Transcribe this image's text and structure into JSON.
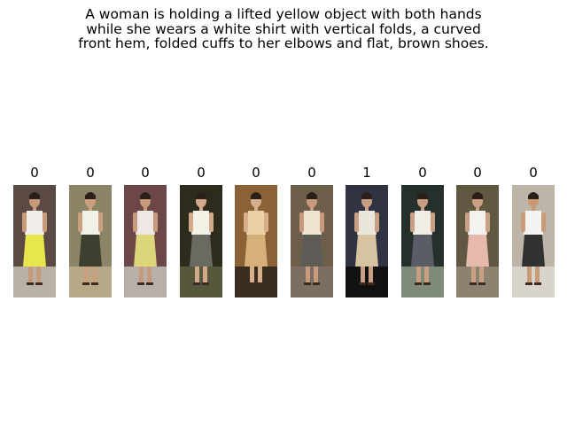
{
  "caption": {
    "lines": [
      "A woman is holding a lifted yellow object with both hands",
      "while she wears a white shirt with vertical folds, a curved",
      "front hem, folded cuffs to her elbows and flat, brown shoes."
    ]
  },
  "panels": [
    {
      "label": "0",
      "bg": "#5b4a44",
      "floor": "#b9b1a6",
      "top": "#f2eeea",
      "bottom": "#e7e64a",
      "skin": "#c79a7b"
    },
    {
      "label": "0",
      "bg": "#8b8467",
      "floor": "#b7a887",
      "top": "#f1f1ea",
      "bottom": "#3d3f2f",
      "skin": "#caa07f"
    },
    {
      "label": "0",
      "bg": "#6c4748",
      "floor": "#b7b0aa",
      "top": "#efe7e3",
      "bottom": "#dcd67a",
      "skin": "#c79a7b"
    },
    {
      "label": "0",
      "bg": "#2d2b1c",
      "floor": "#56573b",
      "top": "#f3f0e6",
      "bottom": "#6b6a62",
      "skin": "#d2a98a"
    },
    {
      "label": "0",
      "bg": "#8b6235",
      "floor": "#3b2c20",
      "top": "#ead2a4",
      "bottom": "#d6b07b",
      "skin": "#d6b08d"
    },
    {
      "label": "0",
      "bg": "#6d5e4a",
      "floor": "#7c6f61",
      "top": "#efe4d2",
      "bottom": "#5e5b56",
      "skin": "#c79a7b"
    },
    {
      "label": "1",
      "bg": "#2f3342",
      "floor": "#111111",
      "top": "#eae6dc",
      "bottom": "#d7c3a1",
      "skin": "#c99f84"
    },
    {
      "label": "0",
      "bg": "#25302c",
      "floor": "#7f8a78",
      "top": "#f1ede4",
      "bottom": "#5b5d66",
      "skin": "#c99f84"
    },
    {
      "label": "0",
      "bg": "#615842",
      "floor": "#8d8170",
      "top": "#f4f2ee",
      "bottom": "#e6b9ad",
      "skin": "#c9a084"
    },
    {
      "label": "0",
      "bg": "#bdb6a8",
      "floor": "#d8d4cc",
      "top": "#f3f3f2",
      "bottom": "#313131",
      "skin": "#c89b76"
    }
  ]
}
